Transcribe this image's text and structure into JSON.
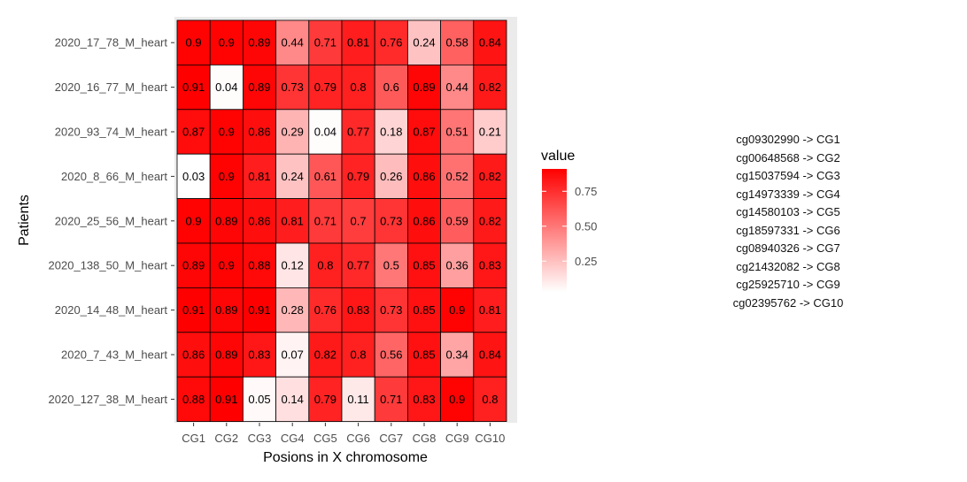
{
  "chart_data": {
    "type": "heatmap",
    "xlabel": "Posions in X chromosome",
    "ylabel": "Patients",
    "x_categories": [
      "CG1",
      "CG2",
      "CG3",
      "CG4",
      "CG5",
      "CG6",
      "CG7",
      "CG8",
      "CG9",
      "CG10"
    ],
    "y_categories": [
      "2020_17_78_M_heart",
      "2020_16_77_M_heart",
      "2020_93_74_M_heart",
      "2020_8_66_M_heart",
      "2020_25_56_M_heart",
      "2020_138_50_M_heart",
      "2020_14_48_M_heart",
      "2020_7_43_M_heart",
      "2020_127_38_M_heart"
    ],
    "values": [
      [
        0.9,
        0.9,
        0.89,
        0.44,
        0.71,
        0.81,
        0.76,
        0.24,
        0.58,
        0.84
      ],
      [
        0.91,
        0.04,
        0.89,
        0.73,
        0.79,
        0.8,
        0.6,
        0.89,
        0.44,
        0.82
      ],
      [
        0.87,
        0.9,
        0.86,
        0.29,
        0.04,
        0.77,
        0.18,
        0.87,
        0.51,
        0.21
      ],
      [
        0.03,
        0.9,
        0.81,
        0.24,
        0.61,
        0.79,
        0.26,
        0.86,
        0.52,
        0.82
      ],
      [
        0.9,
        0.89,
        0.86,
        0.81,
        0.71,
        0.7,
        0.73,
        0.86,
        0.59,
        0.82
      ],
      [
        0.89,
        0.9,
        0.88,
        0.12,
        0.8,
        0.77,
        0.5,
        0.85,
        0.36,
        0.83
      ],
      [
        0.91,
        0.89,
        0.91,
        0.28,
        0.76,
        0.83,
        0.73,
        0.85,
        0.9,
        0.81
      ],
      [
        0.86,
        0.89,
        0.83,
        0.07,
        0.82,
        0.8,
        0.56,
        0.85,
        0.34,
        0.84
      ],
      [
        0.88,
        0.91,
        0.05,
        0.14,
        0.79,
        0.11,
        0.71,
        0.83,
        0.9,
        0.8
      ]
    ],
    "legend": {
      "title": "value",
      "ticks": [
        0.25,
        0.5,
        0.75
      ],
      "tick_labels": [
        "0.25",
        "0.50",
        "0.75"
      ],
      "range": [
        0.03,
        0.91
      ],
      "low_color": "#ffffff",
      "high_color": "#ff0000",
      "placement": "right"
    }
  },
  "mapping": [
    "cg09302990 -> CG1",
    "cg00648568 -> CG2",
    "cg15037594 -> CG3",
    "cg14973339 -> CG4",
    "cg14580103 -> CG5",
    "cg18597331 -> CG6",
    "cg08940326 -> CG7",
    "cg21432082 -> CG8",
    "cg25925710 -> CG9",
    "cg02395762 -> CG10"
  ]
}
